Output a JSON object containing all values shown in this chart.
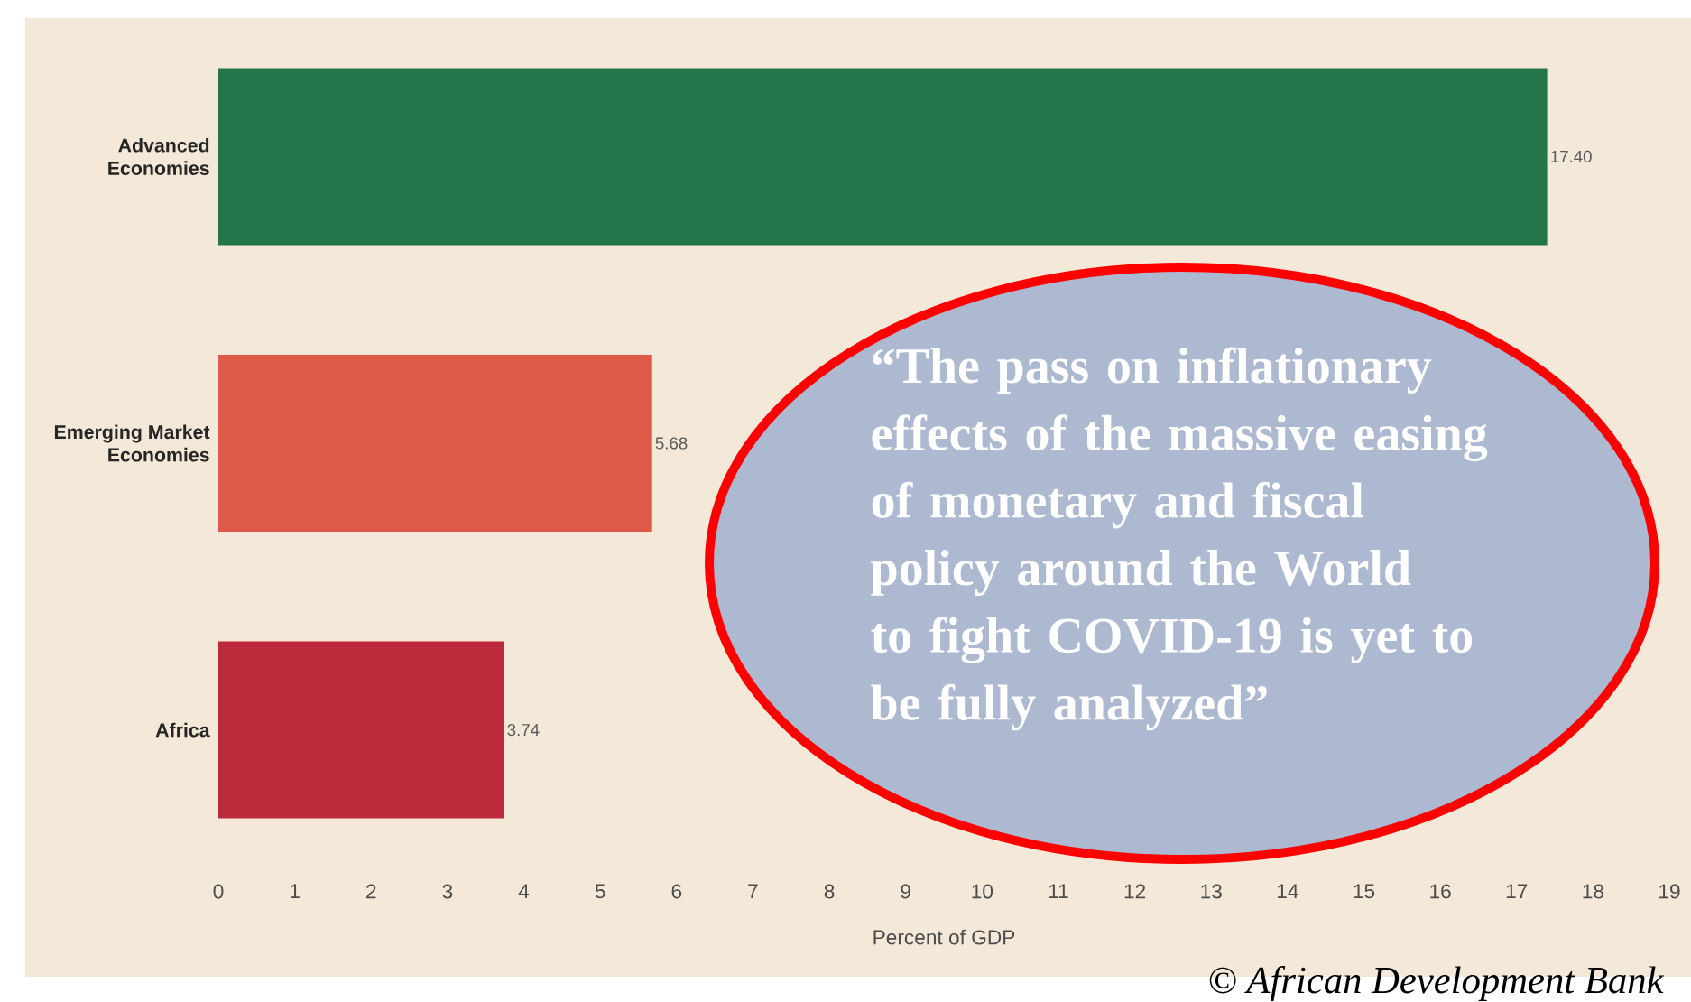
{
  "chart_data": {
    "type": "bar",
    "orientation": "horizontal",
    "categories": [
      "Advanced\nEconomies",
      "Emerging Market\nEconomies",
      "Africa"
    ],
    "values": [
      17.4,
      5.68,
      3.74
    ],
    "colors": [
      "#23764a",
      "#de5a48",
      "#bc2a3b"
    ],
    "value_labels": [
      "17.40",
      "5.68",
      "3.74"
    ],
    "xlabel": "Percent of GDP",
    "xlim": [
      0,
      19
    ],
    "xticks": [
      0,
      1,
      2,
      3,
      4,
      5,
      6,
      7,
      8,
      9,
      10,
      11,
      12,
      13,
      14,
      15,
      16,
      17,
      18,
      19
    ],
    "grid": false,
    "annotations": [
      "“The pass on inflationary effects of the massive easing of monetary and fiscal policy around the World to fight COVID-19 is yet to be fully analyzed”",
      "© African Development Bank"
    ]
  }
}
